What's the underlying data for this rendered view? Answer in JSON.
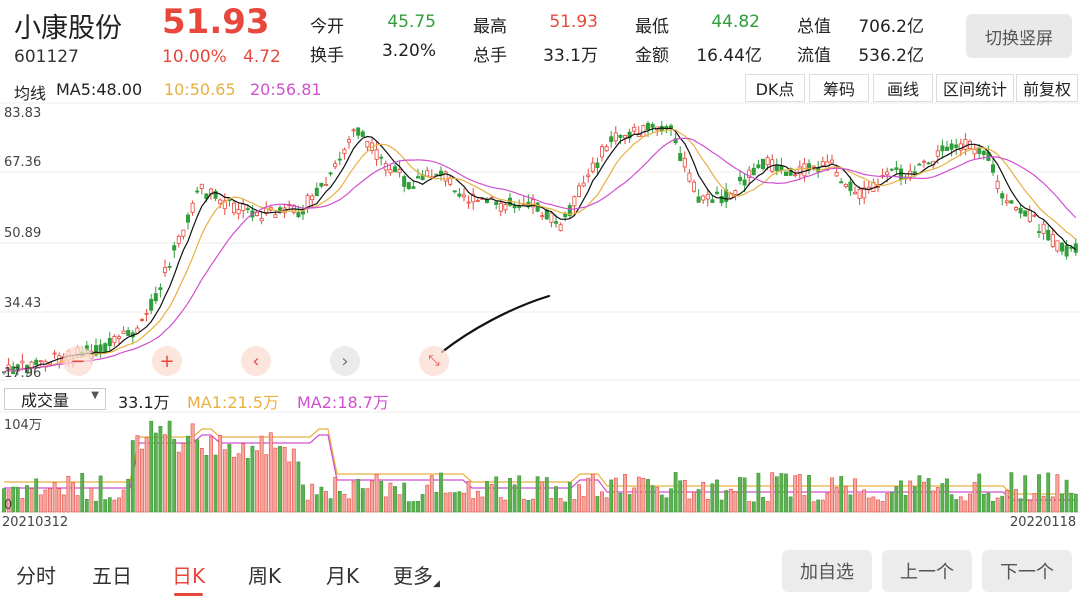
{
  "stock": {
    "name": "小康股份",
    "price": "51.93",
    "code": "601127",
    "change_pct": "10.00%",
    "change_amt": "4.72"
  },
  "quotes": [
    {
      "label": "今开",
      "value": "45.75",
      "color": "#2f9e3a"
    },
    {
      "label": "最高",
      "value": "51.93",
      "color": "#e8483c"
    },
    {
      "label": "最低",
      "value": "44.82",
      "color": "#2f9e3a"
    },
    {
      "label": "总值",
      "value": "706.2亿",
      "color": "#222222"
    },
    {
      "label": "换手",
      "value": "3.20%",
      "color": "#222222"
    },
    {
      "label": "总手",
      "value": "33.1万",
      "color": "#222222"
    },
    {
      "label": "金额",
      "value": "16.44亿",
      "color": "#222222"
    },
    {
      "label": "流值",
      "value": "536.2亿",
      "color": "#222222"
    }
  ],
  "switch_label": "切换竖屏",
  "ma": {
    "label": "均线",
    "ma5": "MA5:48.00",
    "ma10": "10:50.65",
    "ma20": "20:56.81"
  },
  "tools": [
    "DK点",
    "筹码",
    "画线",
    "区间统计",
    "前复权"
  ],
  "price_axis": [
    "83.83",
    "67.36",
    "50.89",
    "34.43",
    "17.96"
  ],
  "controls": [
    "minus-icon",
    "plus-icon",
    "chevron-left-icon",
    "chevron-right-icon",
    "shrink-icon"
  ],
  "volume": {
    "selector": "成交量",
    "value": "33.1万",
    "ma1": "MA1:21.5万",
    "ma2": "MA2:18.7万",
    "axis_top": "104万",
    "axis_bottom": "0"
  },
  "dates": {
    "start": "20210312",
    "end": "20220118"
  },
  "tabs": [
    "分时",
    "五日",
    "日K",
    "周K",
    "月K",
    "更多"
  ],
  "active_tab": "日K",
  "buttons": [
    "加自选",
    "上一个",
    "下一个"
  ],
  "colors": {
    "up": "#e8483c",
    "down": "#2f9e3a",
    "ma5": "#111111",
    "ma10": "#e8b040",
    "ma20": "#d050d0"
  }
}
